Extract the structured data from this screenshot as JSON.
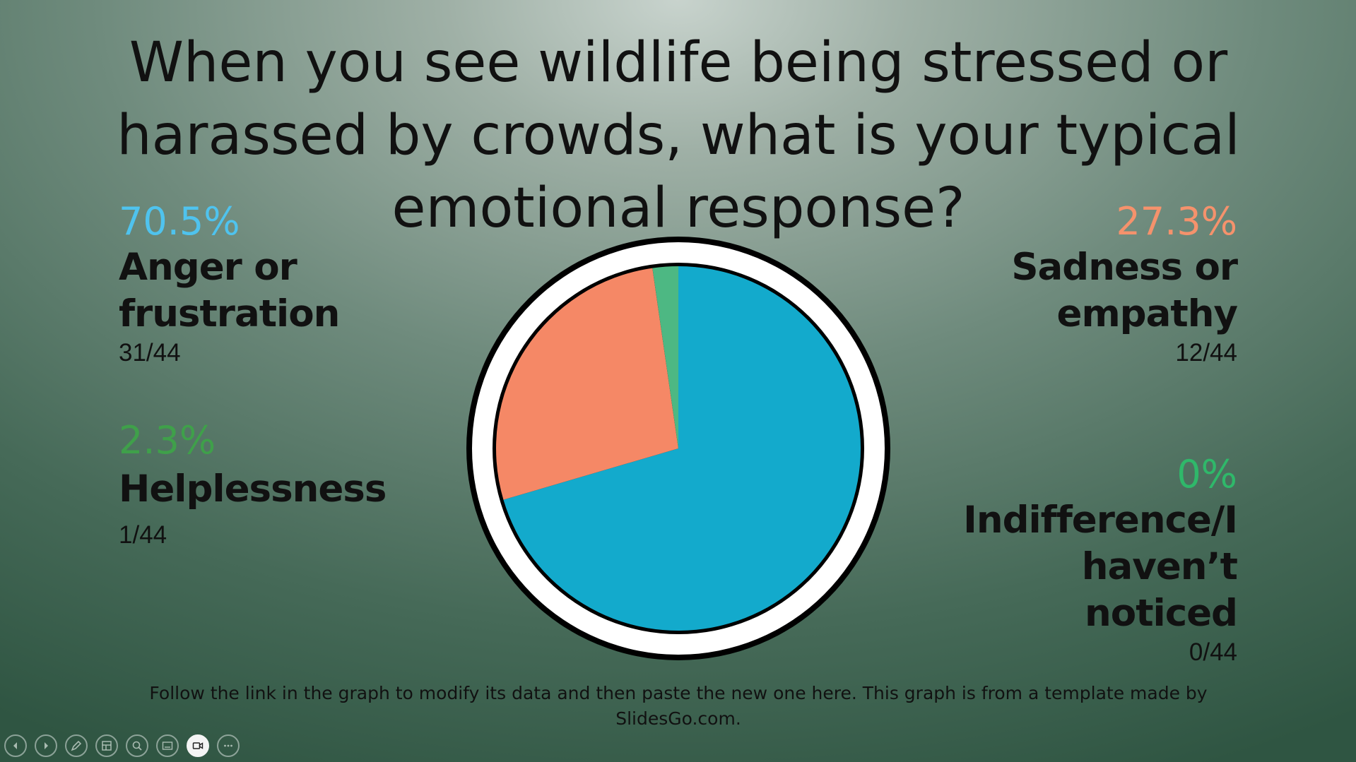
{
  "title": "When you see wildlife being stressed or harassed by crowds, what is your typical emotional response?",
  "stats": [
    {
      "pct": "70.5%",
      "label": "Anger or frustration",
      "count": "31/44",
      "color": "#4fc3ee"
    },
    {
      "pct": "27.3%",
      "label": "Sadness or empathy",
      "count": "12/44",
      "color": "#f5926c"
    },
    {
      "pct": "2.3%",
      "label": "Helplessness",
      "count": "1/44",
      "color": "#3fa04a"
    },
    {
      "pct": "0%",
      "label": "Indifference/I haven’t noticed",
      "count": "0/44",
      "color": "#2fb86a"
    }
  ],
  "chart_data": {
    "type": "pie",
    "categories": [
      "Anger or frustration",
      "Sadness or empathy",
      "Helplessness",
      "Indifference/I haven’t noticed"
    ],
    "values": [
      31,
      12,
      1,
      0
    ],
    "colors": [
      "#13aacc",
      "#f58866",
      "#4db883",
      "#2fb86a"
    ]
  },
  "footer": "Follow the link in the graph to modify its data and then paste the new one here. This graph is from a template made by SlidesGo.com.",
  "toolbar": {
    "buttons": [
      "previous-icon",
      "next-icon",
      "pen-icon",
      "slides-grid-icon",
      "zoom-icon",
      "subtitles-icon",
      "camera-icon",
      "more-icon"
    ]
  }
}
